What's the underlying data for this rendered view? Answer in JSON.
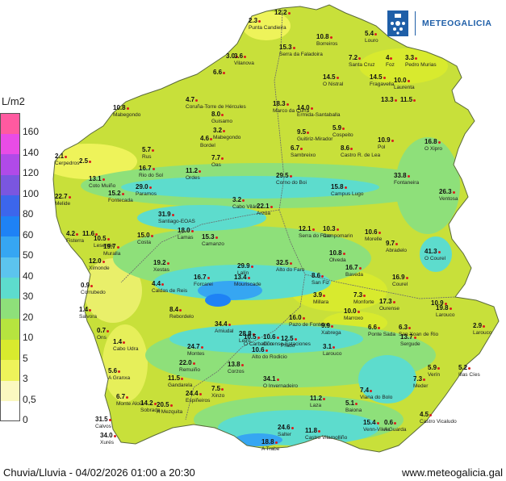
{
  "brand": {
    "name": "METEOGALICIA",
    "primary_color": "#1f5fa8",
    "logo_icon": "galicia-coat-of-arms-icon"
  },
  "legend": {
    "unit": "L/m2",
    "entries": [
      {
        "label": "160",
        "color": "#ff5aa0"
      },
      {
        "label": "140",
        "color": "#e94ce6"
      },
      {
        "label": "120",
        "color": "#b04ae8"
      },
      {
        "label": "100",
        "color": "#7a56e0"
      },
      {
        "label": "80",
        "color": "#3c66ec"
      },
      {
        "label": "60",
        "color": "#1e82f5"
      },
      {
        "label": "50",
        "color": "#36a6f2"
      },
      {
        "label": "40",
        "color": "#5cc4ee"
      },
      {
        "label": "30",
        "color": "#5ddccd"
      },
      {
        "label": "20",
        "color": "#8ee07a"
      },
      {
        "label": "10",
        "color": "#b6e43f"
      },
      {
        "label": "5",
        "color": "#d8ea2e"
      },
      {
        "label": "3",
        "color": "#eef35a"
      },
      {
        "label": "0,5",
        "color": "#fbf8c0"
      },
      {
        "label": "0",
        "color": "#ffffff"
      }
    ]
  },
  "stations": [
    {
      "value": "2.3",
      "name": "Punta Candieira"
    },
    {
      "value": "12.2",
      "name": ""
    },
    {
      "value": "15.3",
      "name": "Serra da Faladoira"
    },
    {
      "value": "10.8",
      "name": "Borreiros"
    },
    {
      "value": "5.4",
      "name": "Louro"
    },
    {
      "value": "3.0",
      "name": ""
    },
    {
      "value": "3.6",
      "name": "Vilanova"
    },
    {
      "value": "7.2",
      "name": "Santa Cruz"
    },
    {
      "value": "4",
      "name": "Foz"
    },
    {
      "value": "3.3",
      "name": "Pedro Murias"
    },
    {
      "value": "6.6",
      "name": ""
    },
    {
      "value": "14.5",
      "name": "O Nistral"
    },
    {
      "value": "14.5",
      "name": "Fragavella"
    },
    {
      "value": "10.0",
      "name": "Laurenta"
    },
    {
      "value": "4.7",
      "name": "Coruña-Torre de Hércules"
    },
    {
      "value": "18.3",
      "name": "Marco da Curra"
    },
    {
      "value": "14.0",
      "name": "Ermida-Santaballa"
    },
    {
      "value": "13.3",
      "name": ""
    },
    {
      "value": "11.5",
      "name": ""
    },
    {
      "value": "10.8",
      "name": "Mabegondo"
    },
    {
      "value": "8.0",
      "name": "Guisamo"
    },
    {
      "value": "3.2",
      "name": "Mabegondo"
    },
    {
      "value": "9.5",
      "name": "Guitiriz-Mirador"
    },
    {
      "value": "5.9",
      "name": "Cospeito"
    },
    {
      "value": "4.6",
      "name": "Bordel"
    },
    {
      "value": "10.9",
      "name": "Pol"
    },
    {
      "value": "16.8",
      "name": "O Xipro"
    },
    {
      "value": "6.7",
      "name": "Sambreixo"
    },
    {
      "value": "8.6",
      "name": "Castro R. de Lea"
    },
    {
      "value": "5.7",
      "name": "Rus"
    },
    {
      "value": "7.7",
      "name": "Oas"
    },
    {
      "value": "2.1",
      "name": "Cerpedros"
    },
    {
      "value": "2.5",
      "name": ""
    },
    {
      "value": "16.7",
      "name": "Rio do Sol"
    },
    {
      "value": "11.2",
      "name": "Ordes"
    },
    {
      "value": "13.1",
      "name": "Coto Muiño"
    },
    {
      "value": "29.0",
      "name": "Paramos"
    },
    {
      "value": "29.5",
      "name": "Corno do Boi"
    },
    {
      "value": "15.8",
      "name": "Campus Lugo"
    },
    {
      "value": "33.8",
      "name": "Fontaneira"
    },
    {
      "value": "15.2",
      "name": "Fontecada"
    },
    {
      "value": "26.3",
      "name": "Ventosa"
    },
    {
      "value": "3.2",
      "name": "Cabo Vilán"
    },
    {
      "value": "22.1",
      "name": "Arzúa"
    },
    {
      "value": "22.7",
      "name": "Melide"
    },
    {
      "value": "31.9",
      "name": "Santiago-EOAS"
    },
    {
      "value": "15.0",
      "name": "Costa"
    },
    {
      "value": "18.0",
      "name": "Lamas"
    },
    {
      "value": "15.3",
      "name": "Camanzo"
    },
    {
      "value": "12.1",
      "name": "Serra do Faro"
    },
    {
      "value": "10.3",
      "name": "Campomarin"
    },
    {
      "value": "10.6",
      "name": "Morelle"
    },
    {
      "value": "4.2",
      "name": "Fisterra"
    },
    {
      "value": "11.6",
      "name": ""
    },
    {
      "value": "10.5",
      "name": "Lesende"
    },
    {
      "value": "19.7",
      "name": "Muralla"
    },
    {
      "value": "9.7",
      "name": "Abradelo"
    },
    {
      "value": "41.3",
      "name": "O Courel"
    },
    {
      "value": "10.8",
      "name": "Olveda"
    },
    {
      "value": "12.0",
      "name": "Ximonde"
    },
    {
      "value": "19.2",
      "name": "Xestas"
    },
    {
      "value": "32.5",
      "name": "Alto do Faro"
    },
    {
      "value": "29.9",
      "name": "Lalín"
    },
    {
      "value": "16.7",
      "name": "Baveda"
    },
    {
      "value": "0.9",
      "name": "Corrubedo"
    },
    {
      "value": "4.4",
      "name": "Caldas de Reis"
    },
    {
      "value": "16.7",
      "name": "Forcarei"
    },
    {
      "value": "13.4",
      "name": "Mouriscade"
    },
    {
      "value": "8.6",
      "name": "San Fiz"
    },
    {
      "value": "16.9",
      "name": "Courel"
    },
    {
      "value": "1.4",
      "name": "Salvora"
    },
    {
      "value": "3.9",
      "name": "Millara"
    },
    {
      "value": "7.3",
      "name": "Monforte"
    },
    {
      "value": "17.3",
      "name": "Ourense"
    },
    {
      "value": "10.9",
      "name": ""
    },
    {
      "value": "8.4",
      "name": "Rebordelo"
    },
    {
      "value": "16.0",
      "name": "Pazo de Fonteiro"
    },
    {
      "value": "10.0",
      "name": "Marroxo"
    },
    {
      "value": "19.8",
      "name": "Larouco"
    },
    {
      "value": "2.9",
      "name": "Larouco"
    },
    {
      "value": "34.4",
      "name": "Amiudal"
    },
    {
      "value": "28.8",
      "name": "Leiro"
    },
    {
      "value": "9.9",
      "name": "Xabrega"
    },
    {
      "value": "6.6",
      "name": "Ponte Sada"
    },
    {
      "value": "6.3",
      "name": "San Xoan de Rio"
    },
    {
      "value": "0.7",
      "name": "Ons"
    },
    {
      "value": "1.4",
      "name": "Cabo Udra"
    },
    {
      "value": "24.7",
      "name": "Montes"
    },
    {
      "value": "10.5",
      "name": "O Carballiño"
    },
    {
      "value": "10.6",
      "name": "Ourense-Estaciones"
    },
    {
      "value": "12.5",
      "name": "Prado"
    },
    {
      "value": "10.6",
      "name": "Alto do Rodicio"
    },
    {
      "value": "3.1",
      "name": "Larouco"
    },
    {
      "value": "13.7",
      "name": "Sergude"
    },
    {
      "value": "22.0",
      "name": "Remuiño"
    },
    {
      "value": "13.8",
      "name": "Corzos"
    },
    {
      "value": "5.9",
      "name": "Verín"
    },
    {
      "value": "5.2",
      "name": "Illas Cíes"
    },
    {
      "value": "5.6",
      "name": "A Granxa"
    },
    {
      "value": "11.5",
      "name": "Gandarela"
    },
    {
      "value": "34.1",
      "name": "O Invernadeiro"
    },
    {
      "value": "7.4",
      "name": "Viana do Bolo"
    },
    {
      "value": "7.3",
      "name": "Meder"
    },
    {
      "value": "24.4",
      "name": "Espiñeiros"
    },
    {
      "value": "7.5",
      "name": "Xinzo"
    },
    {
      "value": "11.2",
      "name": "Laza"
    },
    {
      "value": "5.1",
      "name": "Baiona"
    },
    {
      "value": "6.7",
      "name": "Monte Aloia"
    },
    {
      "value": "14.2",
      "name": "Sobrada"
    },
    {
      "value": "20.5",
      "name": "A Mezquita"
    },
    {
      "value": "4.5",
      "name": "Castro Vicaludo"
    },
    {
      "value": "31.5",
      "name": "Calvos"
    },
    {
      "value": "24.6",
      "name": "Salter"
    },
    {
      "value": "11.8",
      "name": "Castro Vilamolliño"
    },
    {
      "value": "15.4",
      "name": "Venn-Vilela"
    },
    {
      "value": "0.6",
      "name": "A Guarda"
    },
    {
      "value": "34.0",
      "name": "Xurés"
    },
    {
      "value": "18.8",
      "name": "A Trabe"
    }
  ],
  "footer": {
    "left": "Chuvia/Lluvia - 04/02/2026 01:00 a 20:30",
    "right": "www.meteogalicia.gal"
  }
}
